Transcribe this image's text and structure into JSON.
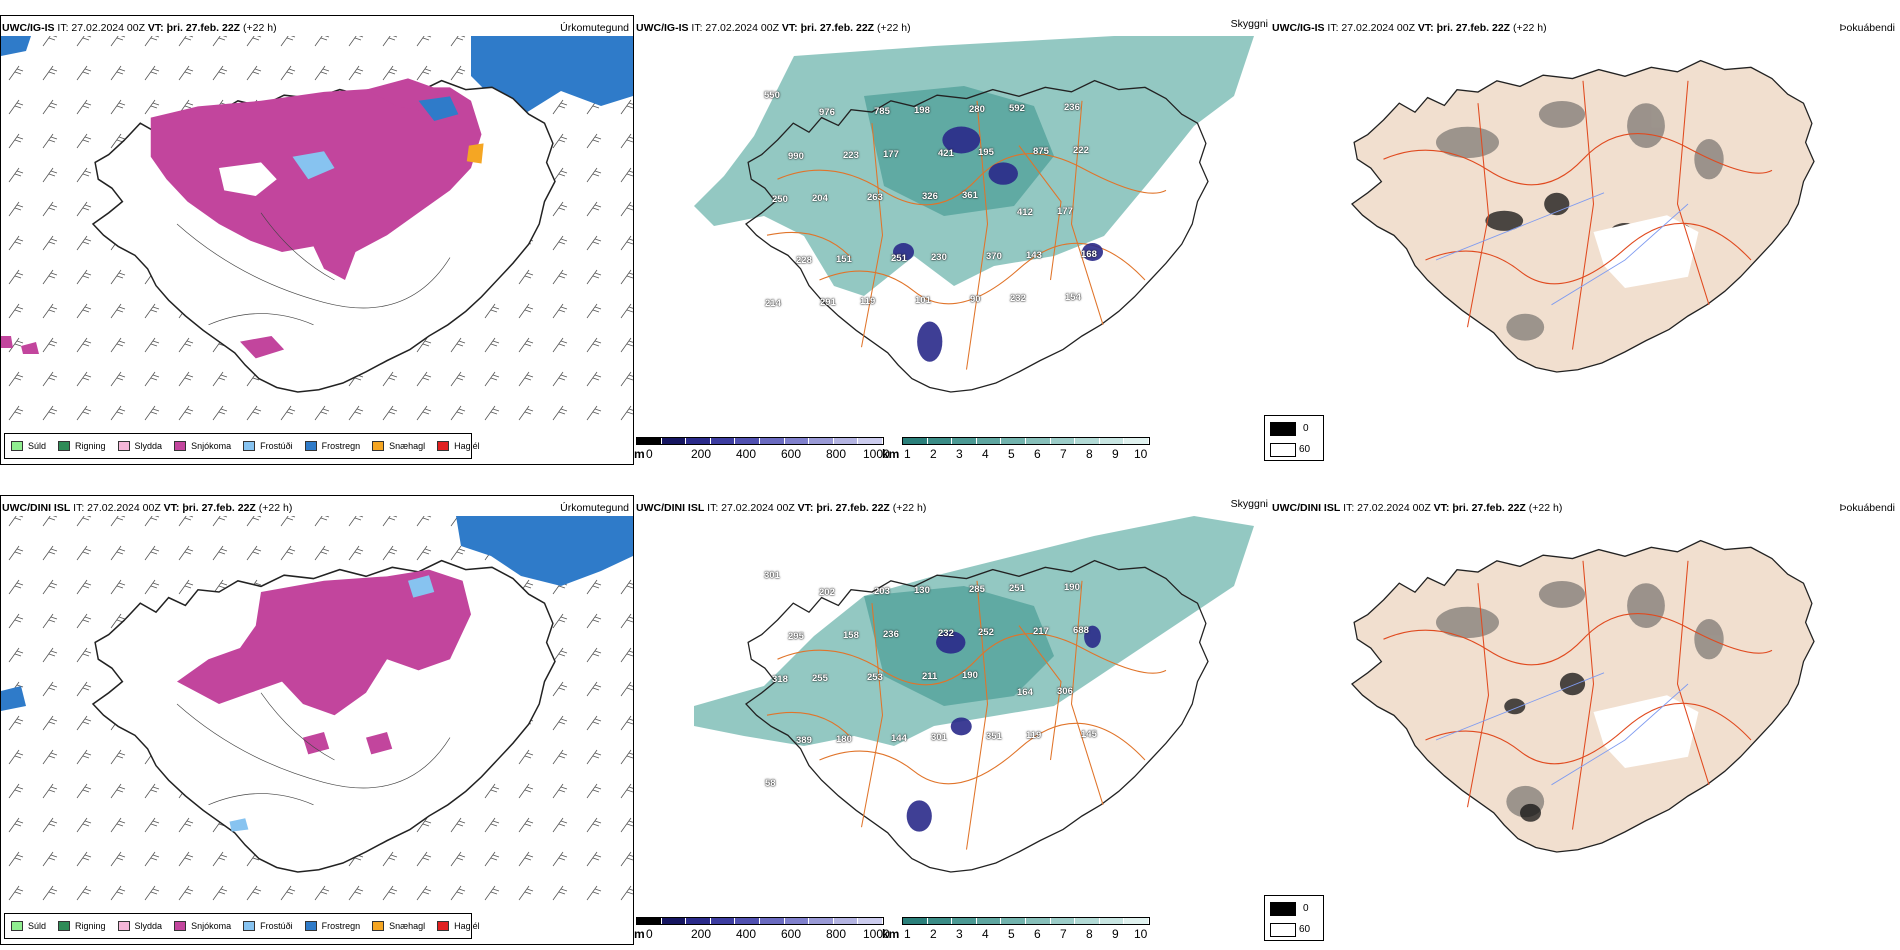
{
  "rows": [
    {
      "model": "UWC/IG-IS",
      "time": " IT: 27.02.2024 00Z ",
      "vt_label": "VT:",
      "vt_value": " þri. 27.feb. 22Z",
      "lead": " (+22 h)",
      "cloud_labels": [
        "550",
        "976",
        "785",
        "198",
        "280",
        "592",
        "236",
        "990",
        "223",
        "177",
        "421",
        "195",
        "875",
        "222",
        "250",
        "204",
        "263",
        "326",
        "361",
        "412",
        "177",
        "228",
        "151",
        "251",
        "230",
        "370",
        "143",
        "168",
        "214",
        "291",
        "119",
        "101",
        "90",
        "232",
        "154"
      ]
    },
    {
      "model": "UWC/DINI ISL",
      "time": " IT: 27.02.2024 00Z ",
      "vt_label": "VT:",
      "vt_value": " þri. 27.feb. 22Z",
      "lead": " (+22 h)",
      "cloud_labels": [
        "301",
        "202",
        "203",
        "130",
        "285",
        "251",
        "190",
        "295",
        "158",
        "236",
        "232",
        "252",
        "217",
        "688",
        "318",
        "255",
        "253",
        "211",
        "190",
        "164",
        "306",
        "389",
        "180",
        "144",
        "301",
        "351",
        "119",
        "145",
        "58"
      ]
    }
  ],
  "panel_titles": {
    "precip": "Úrkomutegund",
    "cloud": "Skyggni",
    "fog": "Þokuábendi"
  },
  "precip_legend": [
    {
      "label": "Súld",
      "color": "#90ee90"
    },
    {
      "label": "Rigning",
      "color": "#2e8b57"
    },
    {
      "label": "Slydda",
      "color": "#f4b6d8"
    },
    {
      "label": "Snjókoma",
      "color": "#c2459d"
    },
    {
      "label": "Frostúði",
      "color": "#87c3f0"
    },
    {
      "label": "Frostregn",
      "color": "#2f7bc9"
    },
    {
      "label": "Snæhagl",
      "color": "#f5a623"
    },
    {
      "label": "Haglél",
      "color": "#e02020"
    }
  ],
  "cloud_scale": {
    "unit_m": "m",
    "ticks_m": [
      "0",
      "200",
      "400",
      "600",
      "800",
      "1000"
    ],
    "unit_km": "km",
    "ticks_km": [
      "1",
      "2",
      "3",
      "4",
      "5",
      "6",
      "7",
      "8",
      "9",
      "10"
    ],
    "colors_m": [
      "#000000",
      "#151560",
      "#2a2a8a",
      "#3c3ca0",
      "#5050b0",
      "#6a6ac0",
      "#8080cc",
      "#9a9ad6",
      "#b4b4e2",
      "#ccccee"
    ],
    "colors_km": [
      "#2a7f7a",
      "#3a8c86",
      "#4b9993",
      "#5ea6a0",
      "#72b3ad",
      "#87c0ba",
      "#9ccdc8",
      "#b2dad5",
      "#c8e6e2",
      "#e0f2ef"
    ]
  },
  "fog_legend": {
    "values": [
      "0",
      "60"
    ]
  },
  "colors": {
    "snow": "#c2459d",
    "frz_rain": "#2f7bc9",
    "frz_drizzle": "#87c3f0",
    "rain": "#2e8b57",
    "cloud_teal": "#4a9d95",
    "cloud_low": "#3a3ab0",
    "roads": "#e0742a",
    "land_fog": "#f1dfcf",
    "rivers": "#7f9bf0"
  }
}
